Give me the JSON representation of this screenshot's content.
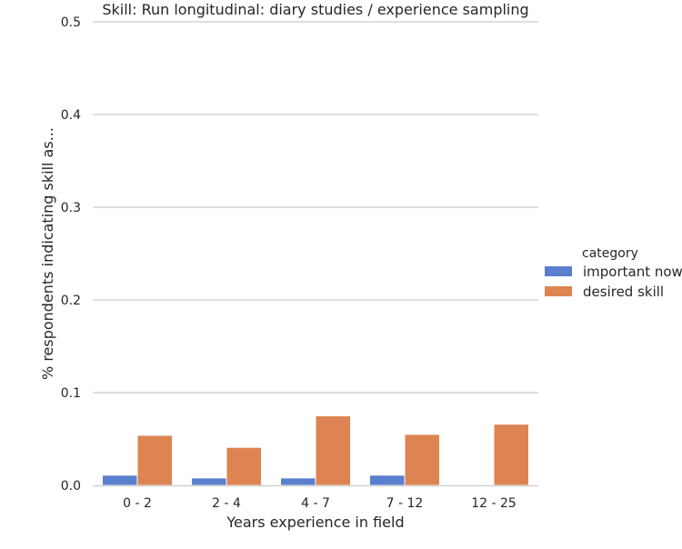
{
  "chart_data": {
    "type": "bar",
    "title": "Skill: Run longitudinal: diary studies / experience sampling",
    "xlabel": "Years experience in field",
    "ylabel": "% respondents indicating skill as...",
    "categories": [
      "0 - 2",
      "2 - 4",
      "4 - 7",
      "7 - 12",
      "12 - 25"
    ],
    "ylim": [
      0,
      0.5
    ],
    "yticks": [
      "0.0",
      "0.1",
      "0.2",
      "0.3",
      "0.4",
      "0.5"
    ],
    "grid": "horizontal",
    "legend": {
      "title": "category",
      "placement": "right"
    },
    "series": [
      {
        "name": "important now",
        "color": "#4c72b0",
        "fill": "#5a7fcf",
        "values": [
          0.011,
          0.008,
          0.008,
          0.011,
          0.0
        ]
      },
      {
        "name": "desired skill",
        "color": "#dd8452",
        "fill": "#dd8452",
        "values": [
          0.054,
          0.041,
          0.075,
          0.055,
          0.066
        ]
      }
    ]
  }
}
